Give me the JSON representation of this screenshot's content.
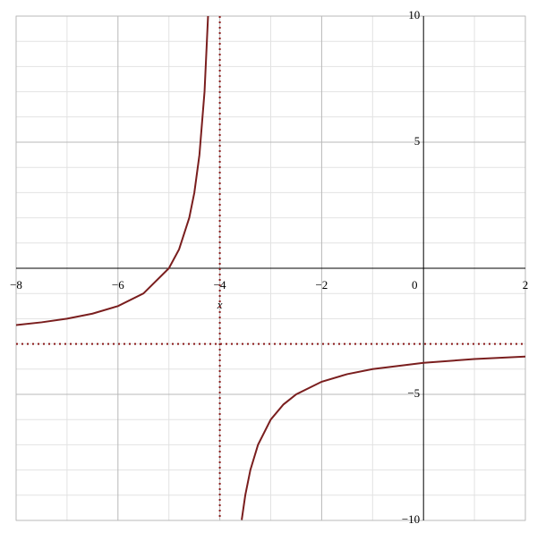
{
  "chart_data": {
    "type": "line",
    "x_axis_label": "x",
    "xlim": [
      -8,
      2
    ],
    "ylim": [
      -10,
      10
    ],
    "xticks": [
      {
        "value": -8,
        "label": "−8"
      },
      {
        "value": -6,
        "label": "−6"
      },
      {
        "value": -4,
        "label": "−4"
      },
      {
        "value": -2,
        "label": "−2"
      },
      0,
      2
    ],
    "yticks": [
      {
        "value": -10,
        "label": "−10"
      },
      {
        "value": -5,
        "label": "−5"
      },
      5,
      10
    ],
    "minor_grid_x": [
      -7,
      -5,
      -3,
      -1,
      1
    ],
    "minor_grid_y": [
      -9,
      -8,
      -7,
      -6,
      -4,
      -3,
      -2,
      -1,
      1,
      2,
      3,
      4,
      6,
      7,
      8,
      9
    ],
    "asymptotes": {
      "x": -4,
      "y": -3,
      "color": "#8b1a1a"
    },
    "series": [
      {
        "color": "#7a1e1e",
        "x": [
          -8,
          -7.5,
          -7,
          -6.5,
          -6,
          -5.5,
          -5,
          -4.8,
          -4.6,
          -4.5,
          -4.4,
          -4.3,
          -4.23,
          -4,
          -3.57,
          -3.5,
          -3.4,
          -3.25,
          -3,
          -2.75,
          -2.5,
          -2,
          -1.5,
          -1,
          0,
          1,
          2
        ],
        "values": [
          -2.25,
          -2.143,
          -2,
          -1.8,
          -1.5,
          -1,
          0,
          0.75,
          2,
          3,
          4.5,
          7,
          10.04,
          null,
          -9.98,
          -9,
          -8,
          -7,
          -6,
          -5.4,
          -5,
          -4.5,
          -4.2,
          -4,
          -3.75,
          -3.6,
          -3.5
        ]
      }
    ]
  }
}
